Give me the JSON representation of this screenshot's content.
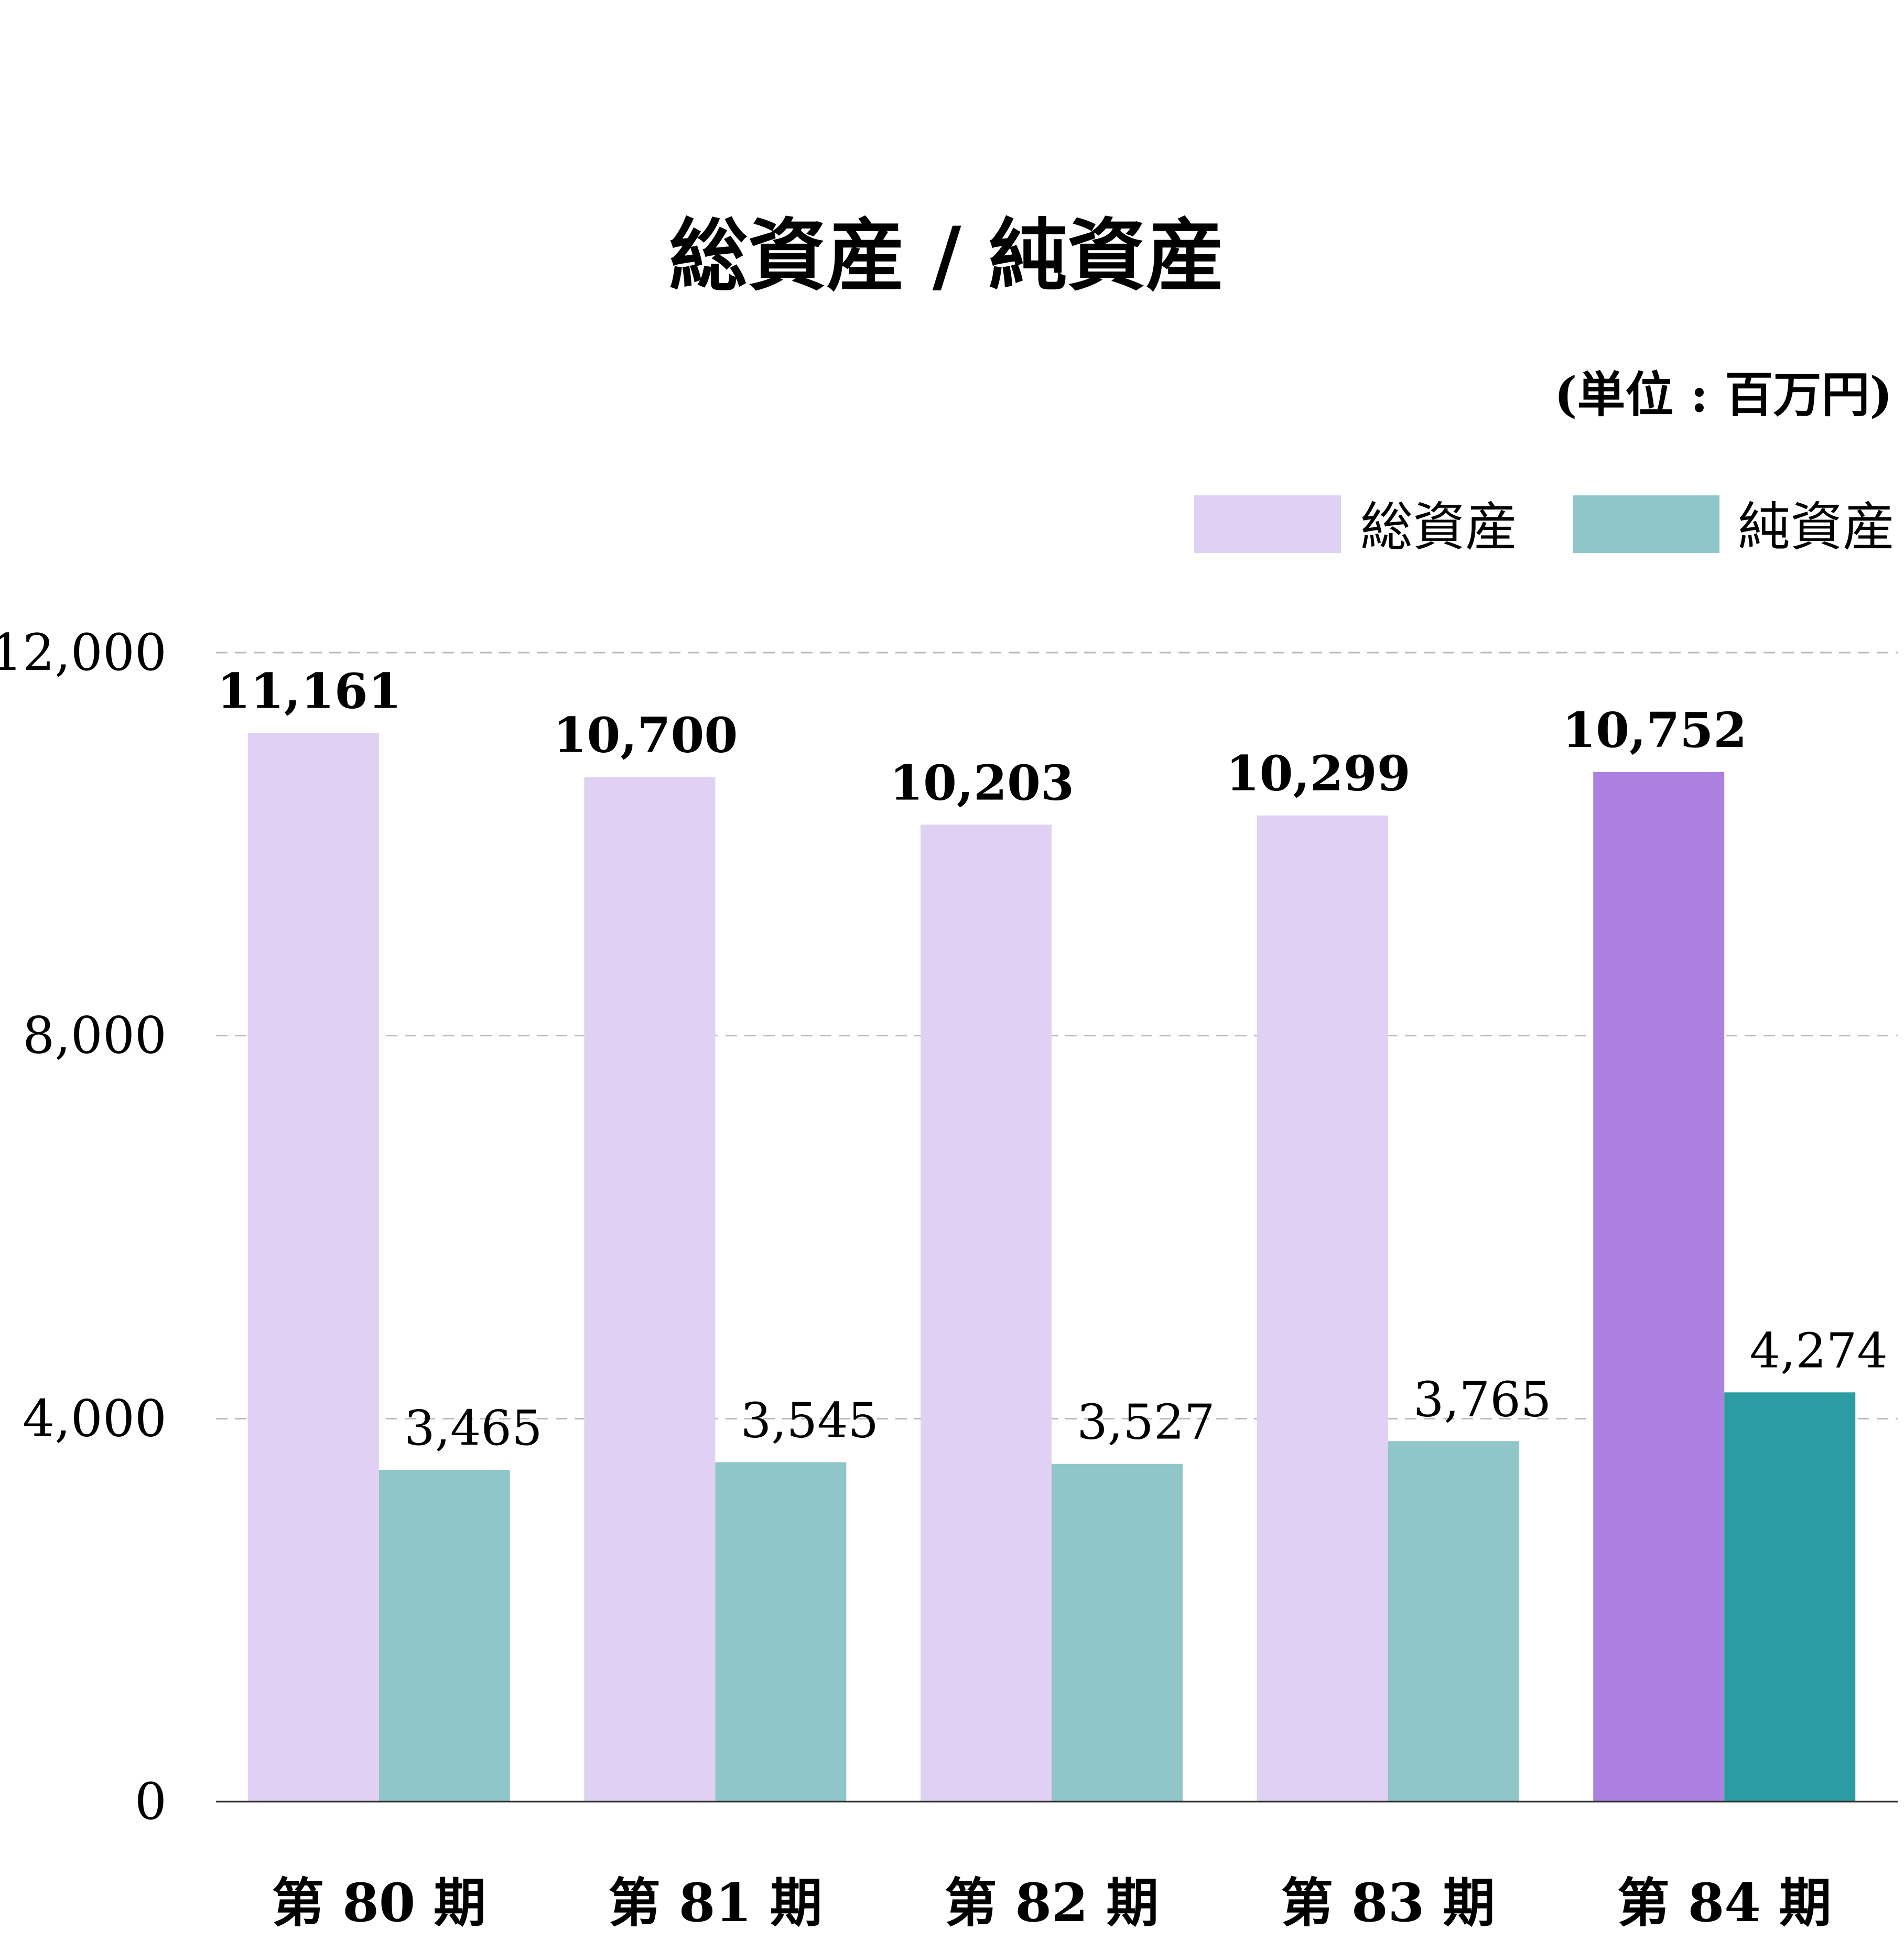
{
  "chart_data": {
    "type": "bar",
    "title": "総資産 / 純資産",
    "unit_label": "(単位 : 百万円)",
    "categories": [
      "第 80 期",
      "第 81 期",
      "第 82 期",
      "第 83 期",
      "第 84 期"
    ],
    "series": [
      {
        "name": "総資産",
        "values": [
          11161,
          10700,
          10203,
          10299,
          10752
        ],
        "value_labels": [
          "11,161",
          "10,700",
          "10,203",
          "10,299",
          "10,752"
        ],
        "color": "#e0d0f3",
        "highlight_color": "#ac80e0"
      },
      {
        "name": "純資産",
        "values": [
          3465,
          3545,
          3527,
          3765,
          4274
        ],
        "value_labels": [
          "3,465",
          "3,545",
          "3,527",
          "3,765",
          "4,274"
        ],
        "color": "#90c6ca",
        "highlight_color": "#2a9ca2"
      }
    ],
    "highlight_index": 4,
    "yticks": [
      0,
      4000,
      8000,
      12000
    ],
    "ytick_labels": [
      "0",
      "4,000",
      "8,000",
      "12,000"
    ],
    "ylim": [
      0,
      12000
    ],
    "grid": "dashed horizontal",
    "legend_position": "top-right"
  }
}
